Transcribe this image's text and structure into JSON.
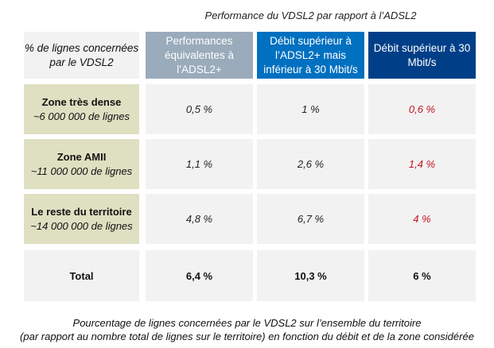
{
  "title": "Performance du VDSL2 par rapport à l’ADSL2",
  "headers": {
    "rowlabel": "% de lignes concernées par le VDSL2",
    "col1": "Performances équivalentes à l’ADSL2+",
    "col2": "Débit supérieur à l’ADSL2+ mais inférieur à 30 Mbit/s",
    "col3": "Débit supérieur à 30 Mbit/s"
  },
  "rows": [
    {
      "zone": "Zone très dense",
      "lines": "~6 000 000 de lignes",
      "v1": "0,5 %",
      "v2": "1 %",
      "v3": "0,6 %"
    },
    {
      "zone": "Zone AMII",
      "lines": "~11 000 000 de lignes",
      "v1": "1,1 %",
      "v2": "2,6 %",
      "v3": "1,4 %"
    },
    {
      "zone": "Le reste du territoire",
      "lines": "~14 000 000 de lignes",
      "v1": "4,8 %",
      "v2": "6,7 %",
      "v3": "4 %"
    }
  ],
  "total": {
    "label": "Total",
    "v1": "6,4 %",
    "v2": "10,3 %",
    "v3": "6 %"
  },
  "caption": {
    "line1": "Pourcentage de lignes concernées par le VDSL2 sur l’ensemble du territoire",
    "line2": "(par rapport au nombre total de lignes sur le territoire) en fonction du débit et de la zone considérée"
  },
  "colors": {
    "header_grey": "#9aabbb",
    "header_blue": "#0070c0",
    "header_dark": "#003f87",
    "label_bg": "#dfdfc2",
    "cell_bg": "#f2f2f2",
    "highlight_red": "#c0141e"
  }
}
